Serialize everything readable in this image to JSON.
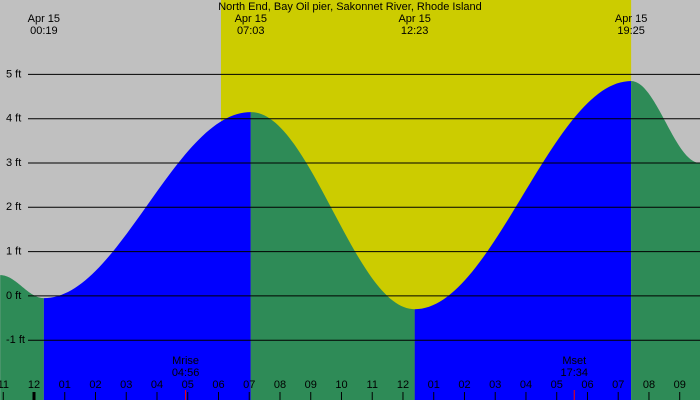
{
  "chart_data": {
    "type": "tide",
    "title": "North End, Bay Oil pier, Sakonnet River, Rhode Island",
    "x": [
      -1.1,
      0.32,
      7.05,
      12.38,
      19.42,
      21.66
    ],
    "values": [
      0.47,
      -0.05,
      4.15,
      -0.3,
      4.85,
      3.0
    ],
    "tide_labels": [
      {
        "date": "Apr 15",
        "time": "00:19"
      },
      {
        "date": "Apr 15",
        "time": "07:03"
      },
      {
        "date": "Apr 15",
        "time": "12:23"
      },
      {
        "date": "Apr 15",
        "time": "19:25"
      }
    ],
    "daylight": [
      6.08,
      19.42
    ],
    "moon": [
      {
        "label": "Mrise",
        "time": "04:56",
        "x": 4.93
      },
      {
        "label": "Mset",
        "time": "17:34",
        "x": 17.57
      }
    ],
    "xlim": [
      -1.106,
      21.66
    ],
    "ylim": [
      -2.35,
      6.68
    ],
    "yticks": [
      {
        "value": 5,
        "label": "5 ft"
      },
      {
        "value": 4,
        "label": "4 ft"
      },
      {
        "value": 3,
        "label": "3 ft"
      },
      {
        "value": 2,
        "label": "2 ft"
      },
      {
        "value": 1,
        "label": "1 ft"
      },
      {
        "value": 0,
        "label": "0 ft"
      },
      {
        "value": -1,
        "label": "-1 ft"
      }
    ],
    "xticks": [
      {
        "value": -1,
        "label": "11"
      },
      {
        "value": 0,
        "label": "12"
      },
      {
        "value": 1,
        "label": "01"
      },
      {
        "value": 2,
        "label": "02"
      },
      {
        "value": 3,
        "label": "03"
      },
      {
        "value": 4,
        "label": "04"
      },
      {
        "value": 5,
        "label": "05"
      },
      {
        "value": 6,
        "label": "06"
      },
      {
        "value": 7,
        "label": "07"
      },
      {
        "value": 8,
        "label": "08"
      },
      {
        "value": 9,
        "label": "09"
      },
      {
        "value": 10,
        "label": "10"
      },
      {
        "value": 11,
        "label": "11"
      },
      {
        "value": 12,
        "label": "12"
      },
      {
        "value": 13,
        "label": "01"
      },
      {
        "value": 14,
        "label": "02"
      },
      {
        "value": 15,
        "label": "03"
      },
      {
        "value": 16,
        "label": "04"
      },
      {
        "value": 17,
        "label": "05"
      },
      {
        "value": 18,
        "label": "06"
      },
      {
        "value": 19,
        "label": "07"
      },
      {
        "value": 20,
        "label": "08"
      },
      {
        "value": 21,
        "label": "09"
      }
    ],
    "colors": {
      "night": "#c0c0c0",
      "day": "#cccc00",
      "rising": "#0000ff",
      "falling": "#2e8b57",
      "moon": "#ff0000"
    }
  }
}
